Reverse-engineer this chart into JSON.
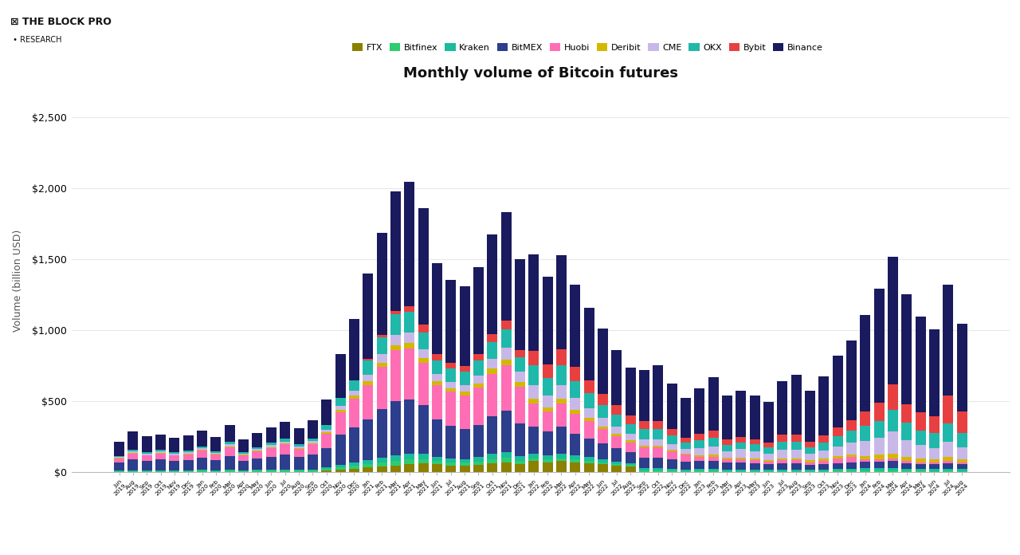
{
  "title": "Monthly volume of Bitcoin futures",
  "ylabel": "Volume (billion USD)",
  "background_color": "#ffffff",
  "grid_color": "#e8e8e8",
  "legend_entries": [
    "FTX",
    "Bitfinex",
    "Kraken",
    "BitMEX",
    "Huobi",
    "Deribit",
    "CME",
    "OKX",
    "Bybit",
    "Binance"
  ],
  "colors": {
    "FTX": "#8B8000",
    "Bitfinex": "#2ecc71",
    "Kraken": "#1abc9c",
    "BitMEX": "#2c3e8c",
    "Huobi": "#ff6eb4",
    "Deribit": "#d4b800",
    "CME": "#c8b8e8",
    "OKX": "#20b8aa",
    "Bybit": "#e84040",
    "Binance": "#1a1a5e"
  },
  "months": [
    "Jun\n2019",
    "Aug\n2019",
    "Sep\n2019",
    "Oct\n2019",
    "Nov\n2019",
    "Dec\n2019",
    "Jan\n2020",
    "Feb\n2020",
    "Mar\n2020",
    "Apr\n2020",
    "May\n2020",
    "Jun\n2020",
    "Jul\n2020",
    "Aug\n2020",
    "Sep\n2020",
    "Oct\n2020",
    "Nov\n2020",
    "Dec\n2020",
    "Jan\n2021",
    "Feb\n2021",
    "Mar\n2021",
    "Apr\n2021",
    "May\n2021",
    "Jun\n2021",
    "Jul\n2021",
    "Aug\n2021",
    "Sep\n2021",
    "Oct\n2021",
    "Nov\n2021",
    "Dec\n2021",
    "Jan\n2022",
    "Feb\n2022",
    "Mar\n2022",
    "Apr\n2022",
    "May\n2022",
    "Jun\n2022",
    "Jul\n2022",
    "Aug\n2022",
    "Sep\n2022",
    "Oct\n2022",
    "Nov\n2022",
    "Dec\n2022",
    "Jan\n2023",
    "Feb\n2023",
    "Mar\n2023",
    "Apr\n2023",
    "May\n2023",
    "Jun\n2023",
    "Jul\n2023",
    "Aug\n2023",
    "Sep\n2023",
    "Oct\n2023",
    "Nov\n2023",
    "Dec\n2023",
    "Jan\n2024",
    "Feb\n2024",
    "Mar\n2024",
    "Apr\n2024",
    "May\n2024",
    "Jun\n2024",
    "Jul\n2024",
    "Aug\n2024"
  ],
  "series_order": [
    "FTX",
    "Bitfinex",
    "Kraken",
    "BitMEX",
    "Huobi",
    "Deribit",
    "CME",
    "OKX",
    "Bybit",
    "Binance"
  ],
  "series": {
    "Binance": [
      100,
      130,
      115,
      110,
      105,
      110,
      110,
      100,
      120,
      90,
      100,
      110,
      120,
      110,
      130,
      180,
      310,
      430,
      600,
      720,
      840,
      880,
      820,
      640,
      580,
      560,
      610,
      700,
      760,
      640,
      680,
      620,
      660,
      580,
      510,
      460,
      390,
      340,
      360,
      390,
      320,
      280,
      320,
      380,
      310,
      330,
      310,
      290,
      380,
      420,
      360,
      420,
      510,
      560,
      680,
      800,
      900,
      780,
      670,
      610,
      780,
      620
    ],
    "Bybit": [
      0,
      0,
      0,
      0,
      0,
      0,
      0,
      0,
      0,
      0,
      0,
      0,
      0,
      0,
      0,
      0,
      0,
      0,
      10,
      15,
      25,
      40,
      55,
      45,
      40,
      40,
      45,
      55,
      65,
      50,
      100,
      95,
      115,
      100,
      90,
      80,
      70,
      60,
      60,
      60,
      50,
      35,
      45,
      50,
      35,
      38,
      35,
      32,
      48,
      52,
      38,
      48,
      62,
      75,
      100,
      130,
      180,
      130,
      130,
      120,
      200,
      150
    ],
    "OKX": [
      8,
      12,
      10,
      12,
      10,
      11,
      14,
      11,
      18,
      11,
      14,
      17,
      20,
      17,
      20,
      32,
      55,
      75,
      100,
      120,
      145,
      145,
      120,
      95,
      95,
      95,
      105,
      120,
      130,
      105,
      140,
      125,
      140,
      120,
      105,
      92,
      82,
      70,
      70,
      70,
      58,
      45,
      58,
      60,
      46,
      46,
      46,
      42,
      58,
      58,
      46,
      56,
      70,
      82,
      105,
      120,
      150,
      120,
      105,
      105,
      130,
      105
    ],
    "CME": [
      8,
      10,
      8,
      10,
      8,
      10,
      12,
      9,
      14,
      9,
      11,
      13,
      15,
      12,
      15,
      18,
      30,
      37,
      50,
      60,
      72,
      72,
      60,
      48,
      48,
      48,
      58,
      70,
      82,
      70,
      95,
      82,
      95,
      82,
      70,
      58,
      52,
      46,
      46,
      46,
      40,
      34,
      46,
      58,
      46,
      58,
      52,
      46,
      58,
      58,
      46,
      58,
      70,
      82,
      105,
      120,
      155,
      120,
      95,
      82,
      105,
      82
    ],
    "Deribit": [
      3,
      4,
      4,
      4,
      4,
      4,
      5,
      4,
      7,
      4,
      5,
      7,
      7,
      5,
      8,
      10,
      16,
      20,
      25,
      30,
      36,
      42,
      36,
      30,
      24,
      24,
      30,
      36,
      42,
      36,
      36,
      30,
      36,
      30,
      24,
      21,
      18,
      14,
      14,
      14,
      11,
      9,
      12,
      14,
      12,
      14,
      12,
      11,
      14,
      14,
      12,
      14,
      18,
      21,
      24,
      30,
      36,
      30,
      24,
      21,
      30,
      24
    ],
    "Huobi": [
      30,
      42,
      38,
      42,
      38,
      40,
      50,
      40,
      60,
      40,
      50,
      60,
      70,
      60,
      70,
      100,
      160,
      200,
      240,
      300,
      360,
      360,
      300,
      240,
      240,
      240,
      260,
      300,
      320,
      260,
      160,
      140,
      160,
      140,
      120,
      100,
      80,
      70,
      70,
      70,
      60,
      50,
      30,
      30,
      24,
      24,
      24,
      20,
      24,
      24,
      20,
      24,
      30,
      36,
      18,
      18,
      18,
      14,
      14,
      14,
      14,
      12
    ],
    "BitMEX": [
      55,
      75,
      65,
      75,
      65,
      72,
      85,
      70,
      95,
      65,
      80,
      90,
      105,
      90,
      105,
      135,
      210,
      250,
      290,
      340,
      380,
      380,
      340,
      265,
      230,
      210,
      230,
      265,
      290,
      230,
      190,
      170,
      190,
      152,
      133,
      114,
      95,
      76,
      76,
      76,
      66,
      53,
      57,
      57,
      47,
      47,
      42,
      38,
      42,
      42,
      34,
      38,
      42,
      47,
      47,
      47,
      47,
      38,
      34,
      34,
      38,
      34
    ],
    "Kraken": [
      4,
      5,
      5,
      5,
      5,
      5,
      6,
      5,
      8,
      5,
      6,
      8,
      8,
      6,
      8,
      12,
      18,
      22,
      27,
      33,
      38,
      42,
      38,
      30,
      27,
      27,
      30,
      38,
      42,
      33,
      33,
      30,
      33,
      30,
      27,
      22,
      18,
      15,
      15,
      15,
      12,
      10,
      12,
      12,
      10,
      10,
      10,
      9,
      10,
      10,
      9,
      10,
      12,
      13,
      15,
      15,
      18,
      15,
      13,
      12,
      15,
      12
    ],
    "Bitfinex": [
      5,
      6,
      6,
      6,
      6,
      6,
      7,
      6,
      9,
      6,
      7,
      9,
      9,
      7,
      9,
      12,
      18,
      21,
      24,
      30,
      33,
      33,
      30,
      24,
      21,
      21,
      24,
      27,
      30,
      24,
      21,
      18,
      21,
      18,
      15,
      12,
      10,
      9,
      9,
      9,
      7,
      6,
      7,
      7,
      6,
      6,
      6,
      5,
      6,
      6,
      5,
      6,
      7,
      7,
      9,
      9,
      10,
      7,
      7,
      6,
      7,
      6
    ],
    "FTX": [
      0,
      0,
      0,
      0,
      0,
      0,
      0,
      0,
      0,
      0,
      0,
      0,
      0,
      0,
      0,
      8,
      15,
      22,
      30,
      37,
      45,
      52,
      60,
      52,
      45,
      42,
      48,
      60,
      67,
      52,
      75,
      67,
      75,
      67,
      60,
      52,
      45,
      37,
      0,
      0,
      0,
      0,
      0,
      0,
      0,
      0,
      0,
      0,
      0,
      0,
      0,
      0,
      0,
      0,
      0,
      0,
      0,
      0,
      0,
      0,
      0,
      0
    ]
  }
}
